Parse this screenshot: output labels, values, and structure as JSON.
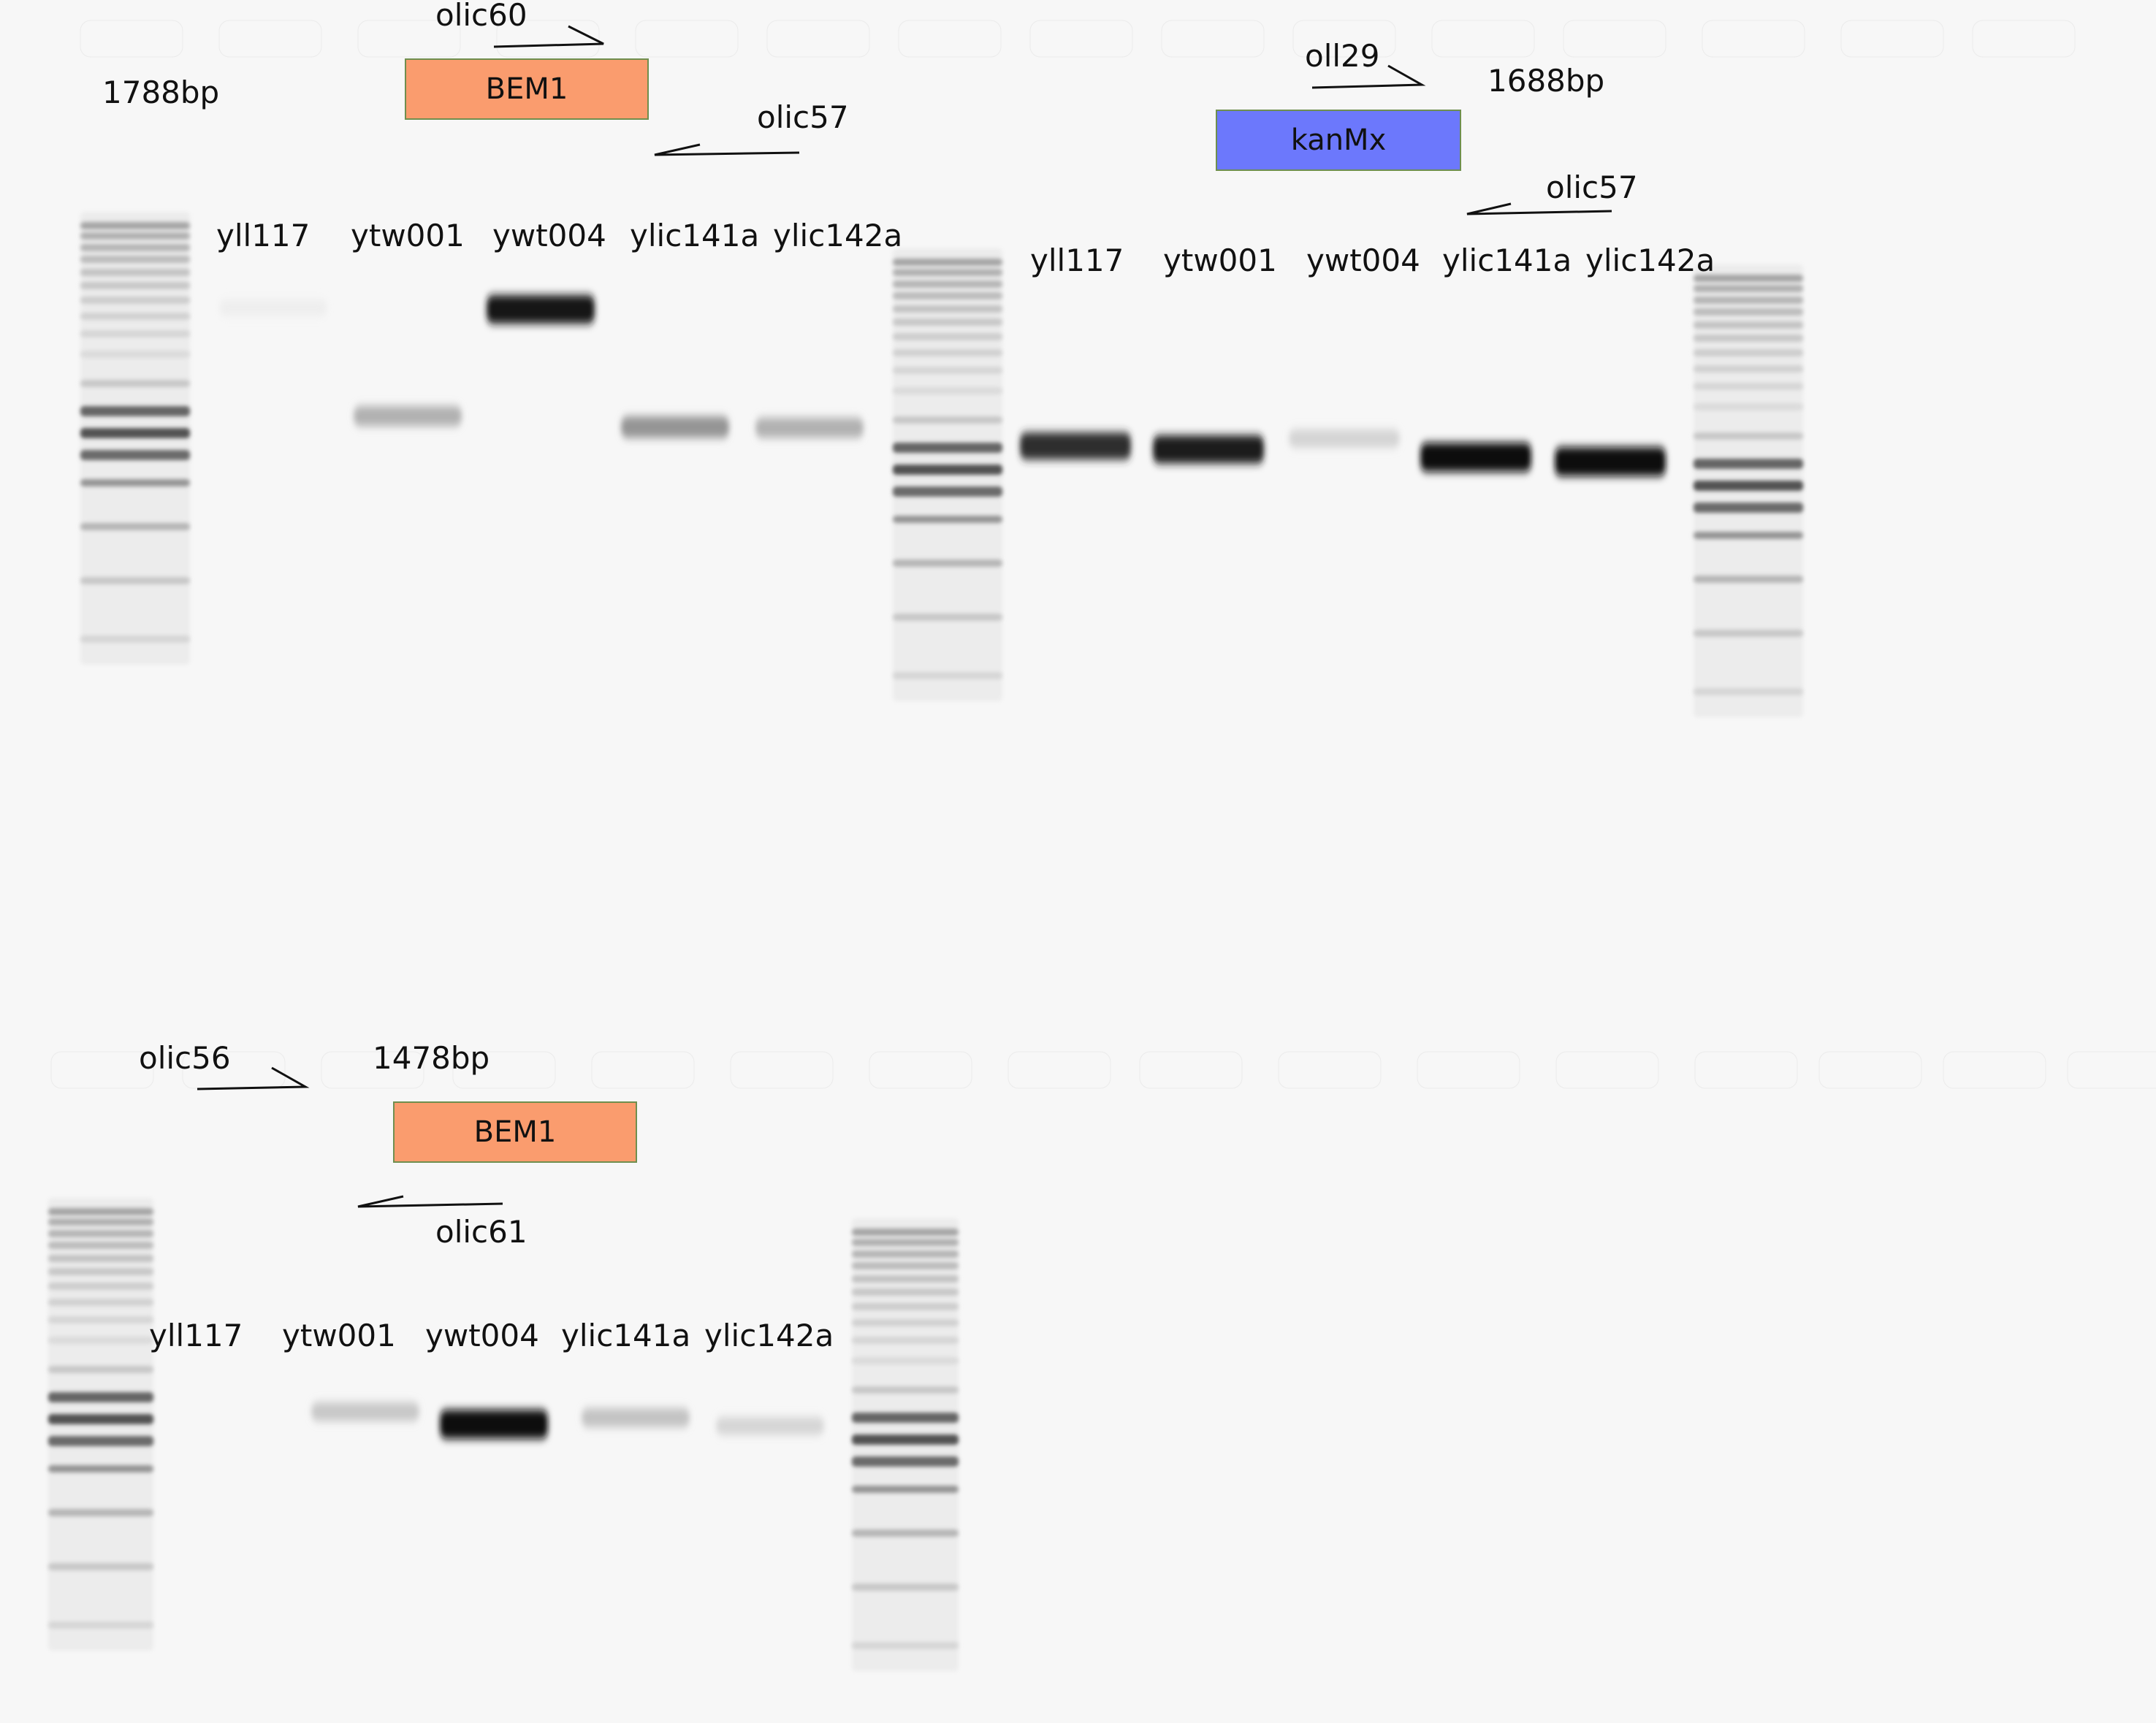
{
  "panels": {
    "top_left": {
      "product_size": "1788bp",
      "gene": "BEM1",
      "gene_color": "#fa9c6e",
      "forward_primer": "olic60",
      "reverse_primer": "olic57",
      "lanes": [
        "yll117",
        "ytw001",
        "ywt004",
        "ylic141a",
        "ylic142a"
      ],
      "band_intensity": [
        0.04,
        0.3,
        0.95,
        0.42,
        0.3
      ]
    },
    "top_right": {
      "product_size": "1688bp",
      "gene": "kanMx",
      "gene_color": "#6c78fc",
      "forward_primer": "oll29",
      "reverse_primer": "olic57",
      "lanes": [
        "yll117",
        "ytw001",
        "ywt004",
        "ylic141a",
        "ylic142a"
      ],
      "band_intensity": [
        0.85,
        0.92,
        0.15,
        1.0,
        1.0
      ]
    },
    "bottom_left": {
      "product_size": "1478bp",
      "gene": "BEM1",
      "gene_color": "#fa9c6e",
      "forward_primer": "olic56",
      "reverse_primer": "olic61",
      "lanes": [
        "yll117",
        "ytw001",
        "ywt004",
        "ylic141a",
        "ylic142a"
      ],
      "band_intensity": [
        0.0,
        0.2,
        1.0,
        0.22,
        0.14
      ]
    }
  },
  "ladder_band_intensity": [
    0.35,
    0.3,
    0.28,
    0.25,
    0.22,
    0.2,
    0.18,
    0.16,
    0.14,
    0.12,
    0.2,
    0.62,
    0.7,
    0.6,
    0.42,
    0.28,
    0.2,
    0.14
  ]
}
